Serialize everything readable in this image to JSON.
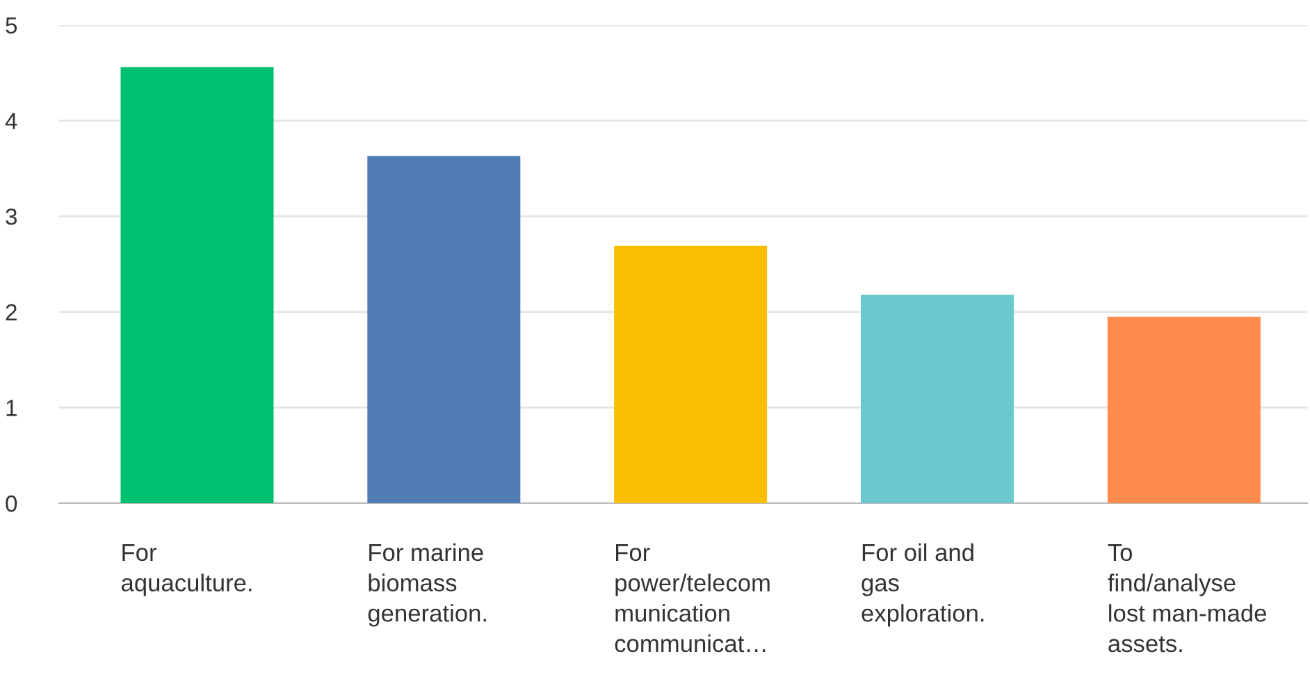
{
  "chart_data": {
    "type": "bar",
    "categories": [
      "For\naquaculture.",
      "For marine\nbiomass\ngeneration.",
      "For\npower/telecom\nmunication\ncommunicat…",
      "For oil and\ngas\nexploration.",
      "To\nfind/analyse\nlost man-made\nassets."
    ],
    "values": [
      4.56,
      3.63,
      2.69,
      2.18,
      1.95
    ],
    "colors": [
      "#00bf6f",
      "#507cb6",
      "#f9be00",
      "#6bc8cd",
      "#ff8b4f"
    ],
    "ylim": [
      0,
      5
    ],
    "yticks": [
      0,
      1,
      2,
      3,
      4,
      5
    ],
    "grid": "y"
  }
}
